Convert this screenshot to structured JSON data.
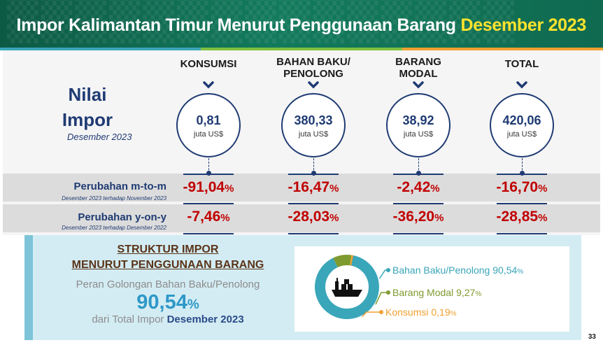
{
  "header": {
    "title_main": "Impor Kalimantan Timur Menurut Penggunaan Barang",
    "title_accent": "Desember 2023"
  },
  "colors": {
    "header_green": "#137a5c",
    "title_accent": "#ffe32d",
    "navy": "#1f3b73",
    "red": "#c00000",
    "teal": "#3aa6b9",
    "olive": "#7f9a2e",
    "orange": "#f0a030",
    "light_blue_panel": "#d3ecf3"
  },
  "nilai": {
    "line1": "Nilai",
    "line2": "Impor",
    "period": "Desember 2023"
  },
  "columns": [
    {
      "head": "KONSUMSI",
      "value": "0,81",
      "unit": "juta US$",
      "mtm": "-91,04",
      "yoy": "-7,46"
    },
    {
      "head": "BAHAN BAKU/\nPENOLONG",
      "value": "380,33",
      "unit": "juta US$",
      "mtm": "-16,47",
      "yoy": "-28,03"
    },
    {
      "head": "BARANG\nMODAL",
      "value": "38,92",
      "unit": "juta US$",
      "mtm": "-2,42",
      "yoy": "-36,20"
    },
    {
      "head": "TOTAL",
      "value": "420,06",
      "unit": "juta US$",
      "mtm": "-16,70",
      "yoy": "-28,85"
    }
  ],
  "percent_symbol": "%",
  "rows": {
    "mtm_label": "Perubahan m-to-m",
    "mtm_sub": "Desember 2023 terhadap November 2023",
    "yoy_label": "Perubahan y-on-y",
    "yoy_sub": "Desember 2023 terhadap Desember 2022"
  },
  "struktur": {
    "title1": "STRUKTUR IMPOR",
    "title2": "MENURUT PENGGUNAAN BARANG",
    "peran": "Peran Golongan Bahan Baku/Penolong",
    "big_value": "90,54",
    "dari": "dari Total Impor",
    "dari_period": "Desember 2023"
  },
  "donut": {
    "slices": [
      {
        "name": "Bahan Baku/Penolong",
        "value": 90.54,
        "label_value": "90,54",
        "color": "#3aa6b9"
      },
      {
        "name": "Barang Modal",
        "value": 9.27,
        "label_value": "9,27",
        "color": "#7f9a2e"
      },
      {
        "name": "Konsumsi",
        "value": 0.19,
        "label_value": "0,19",
        "color": "#f0a030"
      }
    ],
    "center_icon": "cargo-ship-icon"
  },
  "page_number": "33"
}
